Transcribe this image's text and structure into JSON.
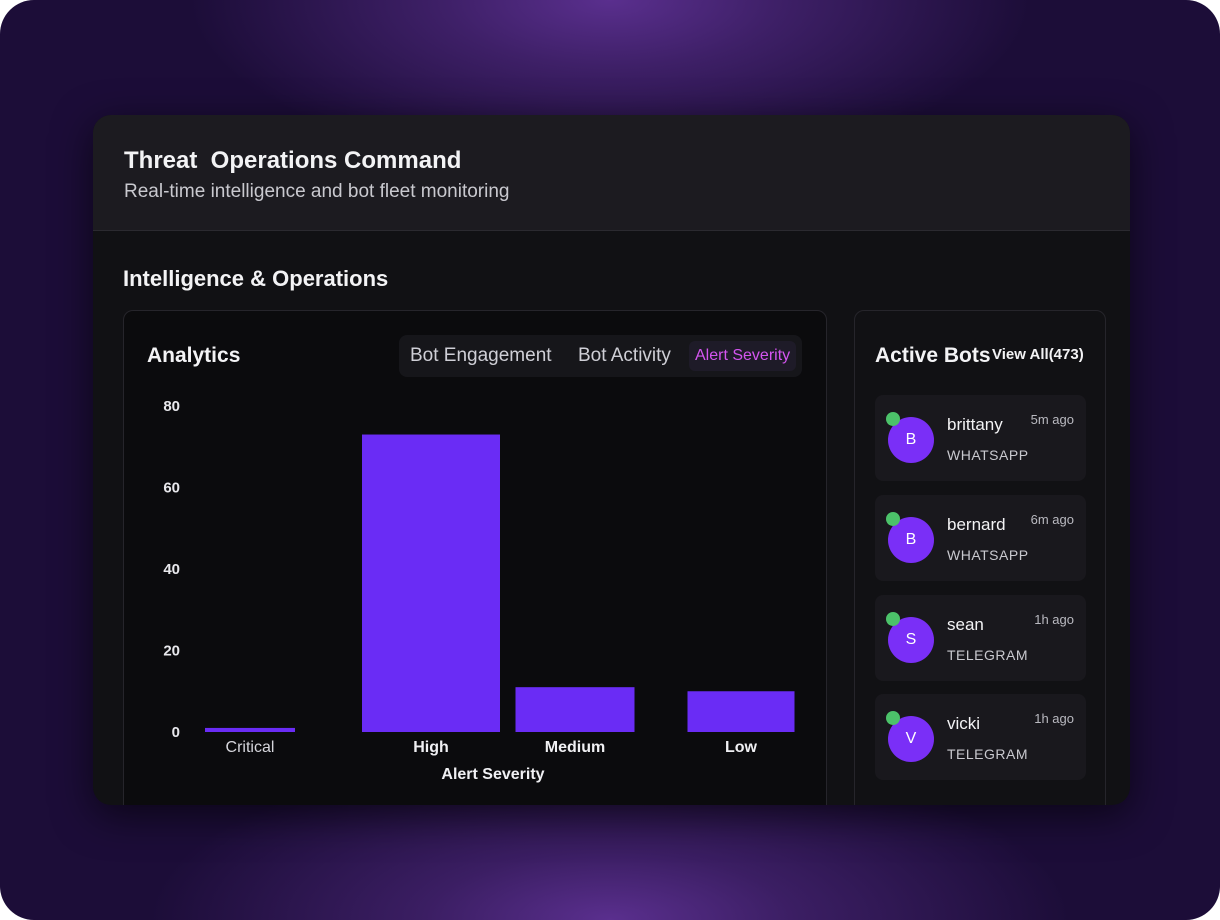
{
  "header": {
    "title": "Threat  Operations Command",
    "subtitle": "Real-time intelligence and bot fleet monitoring"
  },
  "section": {
    "title": "Intelligence & Operations"
  },
  "analytics": {
    "title": "Analytics",
    "tabs": [
      {
        "label": "Bot Engagement",
        "active": false
      },
      {
        "label": "Bot Activity",
        "active": false
      },
      {
        "label": "Alert Severity",
        "active": true
      }
    ]
  },
  "chart_data": {
    "type": "bar",
    "categories": [
      "Critical",
      "High",
      "Medium",
      "Low"
    ],
    "values": [
      1,
      73,
      11,
      10
    ],
    "xlabel": "Alert Severity",
    "ylabel": "",
    "ylim": [
      0,
      80
    ],
    "yticks": [
      0,
      20,
      40,
      60,
      80
    ],
    "bar_color": "#6a2cf5",
    "grid": false
  },
  "bots": {
    "title": "Active Bots",
    "view_all": "View All(473)",
    "items": [
      {
        "initial": "B",
        "name": "brittany",
        "platform": "WHATSAPP",
        "time": "5m ago",
        "online": true
      },
      {
        "initial": "B",
        "name": "bernard",
        "platform": "WHATSAPP",
        "time": "6m ago",
        "online": true
      },
      {
        "initial": "S",
        "name": "sean",
        "platform": "TELEGRAM",
        "time": "1h ago",
        "online": true
      },
      {
        "initial": "V",
        "name": "vicki",
        "platform": "TELEGRAM",
        "time": "1h ago",
        "online": true
      }
    ]
  },
  "colors": {
    "accent": "#7a2ff7",
    "active_tab_text": "#d455f0",
    "online": "#4cc26a",
    "background": "#1c0d38"
  }
}
